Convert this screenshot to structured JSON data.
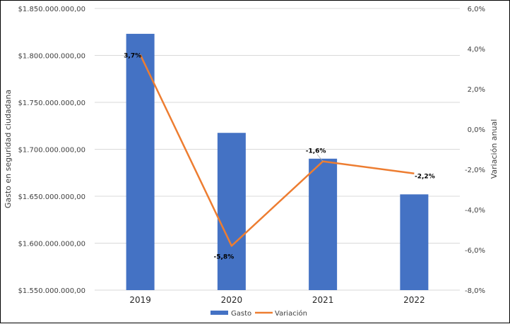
{
  "chart_data": {
    "type": "bar+line",
    "categories": [
      "2019",
      "2020",
      "2021",
      "2022"
    ],
    "series": [
      {
        "name": "Gasto",
        "type": "bar",
        "axis": "left",
        "color": "#4472C4",
        "values": [
          1823000000,
          1717500000,
          1690000000,
          1652000000
        ]
      },
      {
        "name": "Variación",
        "type": "line",
        "axis": "right",
        "color": "#ED7D31",
        "values": [
          3.7,
          -5.8,
          -1.6,
          -2.2
        ],
        "labels": [
          "3,7%",
          "-5,8%",
          "-1,6%",
          "-2,2%"
        ]
      }
    ],
    "ylabel": "Gasto en seguridad ciudadana",
    "y2label": "Variación anual",
    "ylim": [
      1550000000,
      1850000000
    ],
    "y2lim": [
      -8,
      6
    ],
    "yticks": [
      "$1.550.000.000,00",
      "$1.600.000.000,00",
      "$1.650.000.000,00",
      "$1.700.000.000,00",
      "$1.750.000.000,00",
      "$1.800.000.000,00",
      "$1.850.000.000,00"
    ],
    "y2ticks": [
      "-8,0%",
      "-6,0%",
      "-4,0%",
      "-2,0%",
      "0,0%",
      "2,0%",
      "4,0%",
      "6,0%"
    ],
    "grid": true,
    "legend": "bottom"
  }
}
